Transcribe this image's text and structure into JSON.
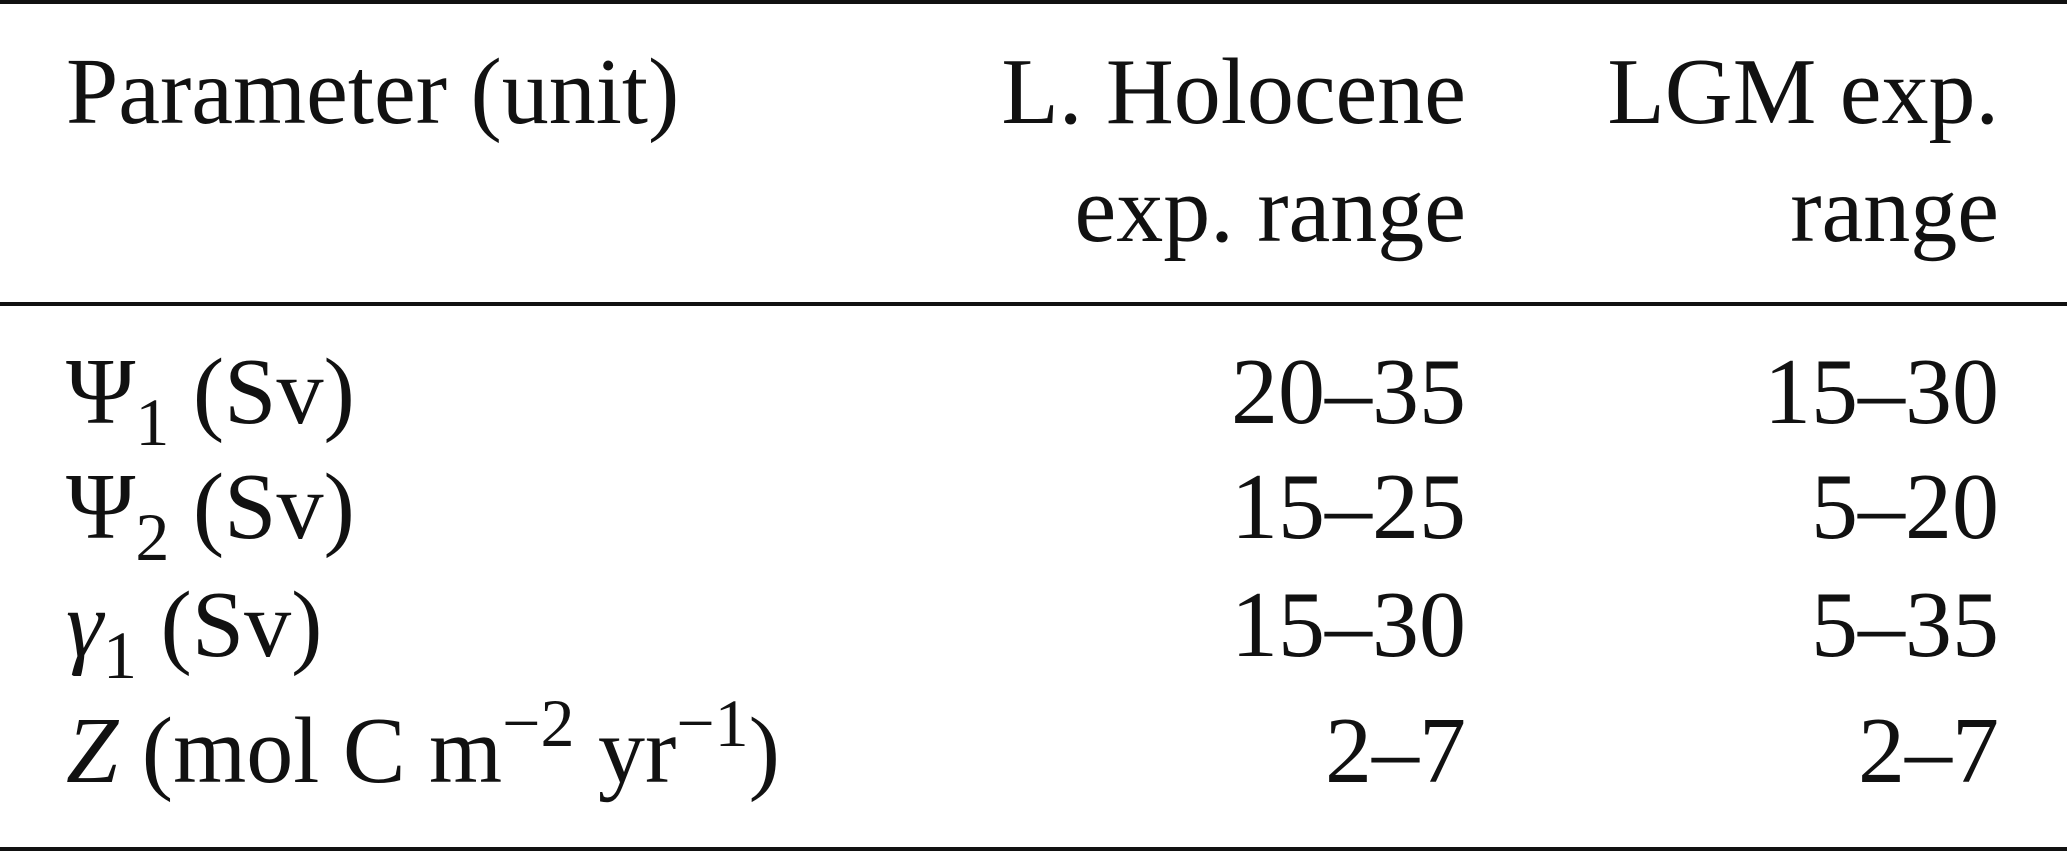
{
  "table": {
    "header": {
      "parameter": "Parameter (unit)",
      "holocene": [
        "L. Holocene",
        "exp. range"
      ],
      "lgm": [
        "LGM exp.",
        "range"
      ]
    },
    "rows": [
      {
        "parameter": [
          {
            "text": "Ψ",
            "style": "normal"
          },
          {
            "text": "1",
            "style": "sub"
          },
          {
            "text": " (Sv)",
            "style": "normal"
          }
        ],
        "holocene": "20–35",
        "lgm": "15–30"
      },
      {
        "parameter": [
          {
            "text": "Ψ",
            "style": "normal"
          },
          {
            "text": "2",
            "style": "sub"
          },
          {
            "text": " (Sv)",
            "style": "normal"
          }
        ],
        "holocene": "15–25",
        "lgm": "5–20"
      },
      {
        "parameter": [
          {
            "text": "γ",
            "style": "italic"
          },
          {
            "text": "1",
            "style": "sub"
          },
          {
            "text": " (Sv)",
            "style": "normal"
          }
        ],
        "holocene": "15–30",
        "lgm": "5–35"
      },
      {
        "parameter": [
          {
            "text": "Z",
            "style": "italic"
          },
          {
            "text": " (mol C m",
            "style": "normal"
          },
          {
            "text": "−2",
            "style": "sup"
          },
          {
            "text": " yr",
            "style": "normal"
          },
          {
            "text": "−1",
            "style": "sup"
          },
          {
            "text": ")",
            "style": "normal"
          }
        ],
        "holocene": "2–7",
        "lgm": "2–7"
      }
    ]
  }
}
